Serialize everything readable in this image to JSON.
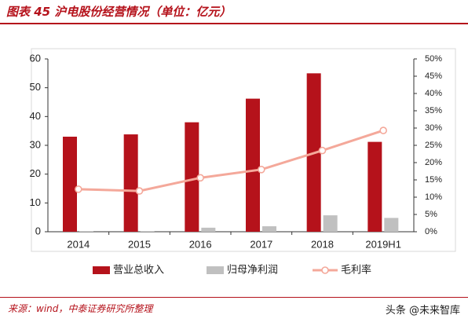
{
  "header": {
    "title": "图表 45 沪电股份经营情况（单位：亿元）"
  },
  "footer": {
    "source": "来源：wind，中泰证券研究所整理",
    "watermark": "头条 @未来智库"
  },
  "colors": {
    "accent": "#b5121b",
    "revenue_bar": "#b5121b",
    "profit_bar": "#c0c0c0",
    "margin_line": "#f4a89a"
  },
  "chart_data": {
    "type": "bar",
    "categories": [
      "2014",
      "2015",
      "2016",
      "2017",
      "2018",
      "2019H1"
    ],
    "series": [
      {
        "name": "营业总收入",
        "type": "bar",
        "axis": "left",
        "values": [
          33.0,
          33.8,
          38.0,
          46.2,
          55.0,
          31.2
        ]
      },
      {
        "name": "归母净利润",
        "type": "bar",
        "axis": "left",
        "values": [
          0.1,
          0.1,
          1.4,
          1.9,
          5.7,
          4.8
        ]
      },
      {
        "name": "毛利率",
        "type": "line",
        "axis": "right",
        "values": [
          12.3,
          11.8,
          15.6,
          18.0,
          23.5,
          29.3
        ]
      }
    ],
    "yleft": {
      "lim": [
        0,
        60
      ],
      "ticks": [
        "0",
        "10",
        "20",
        "30",
        "40",
        "50",
        "60"
      ]
    },
    "yright": {
      "lim": [
        0,
        50
      ],
      "ticks": [
        "0%",
        "5%",
        "10%",
        "15%",
        "20%",
        "25%",
        "30%",
        "35%",
        "40%",
        "45%",
        "50%"
      ]
    },
    "legend": {
      "placement": "bottom"
    },
    "grid": false
  }
}
